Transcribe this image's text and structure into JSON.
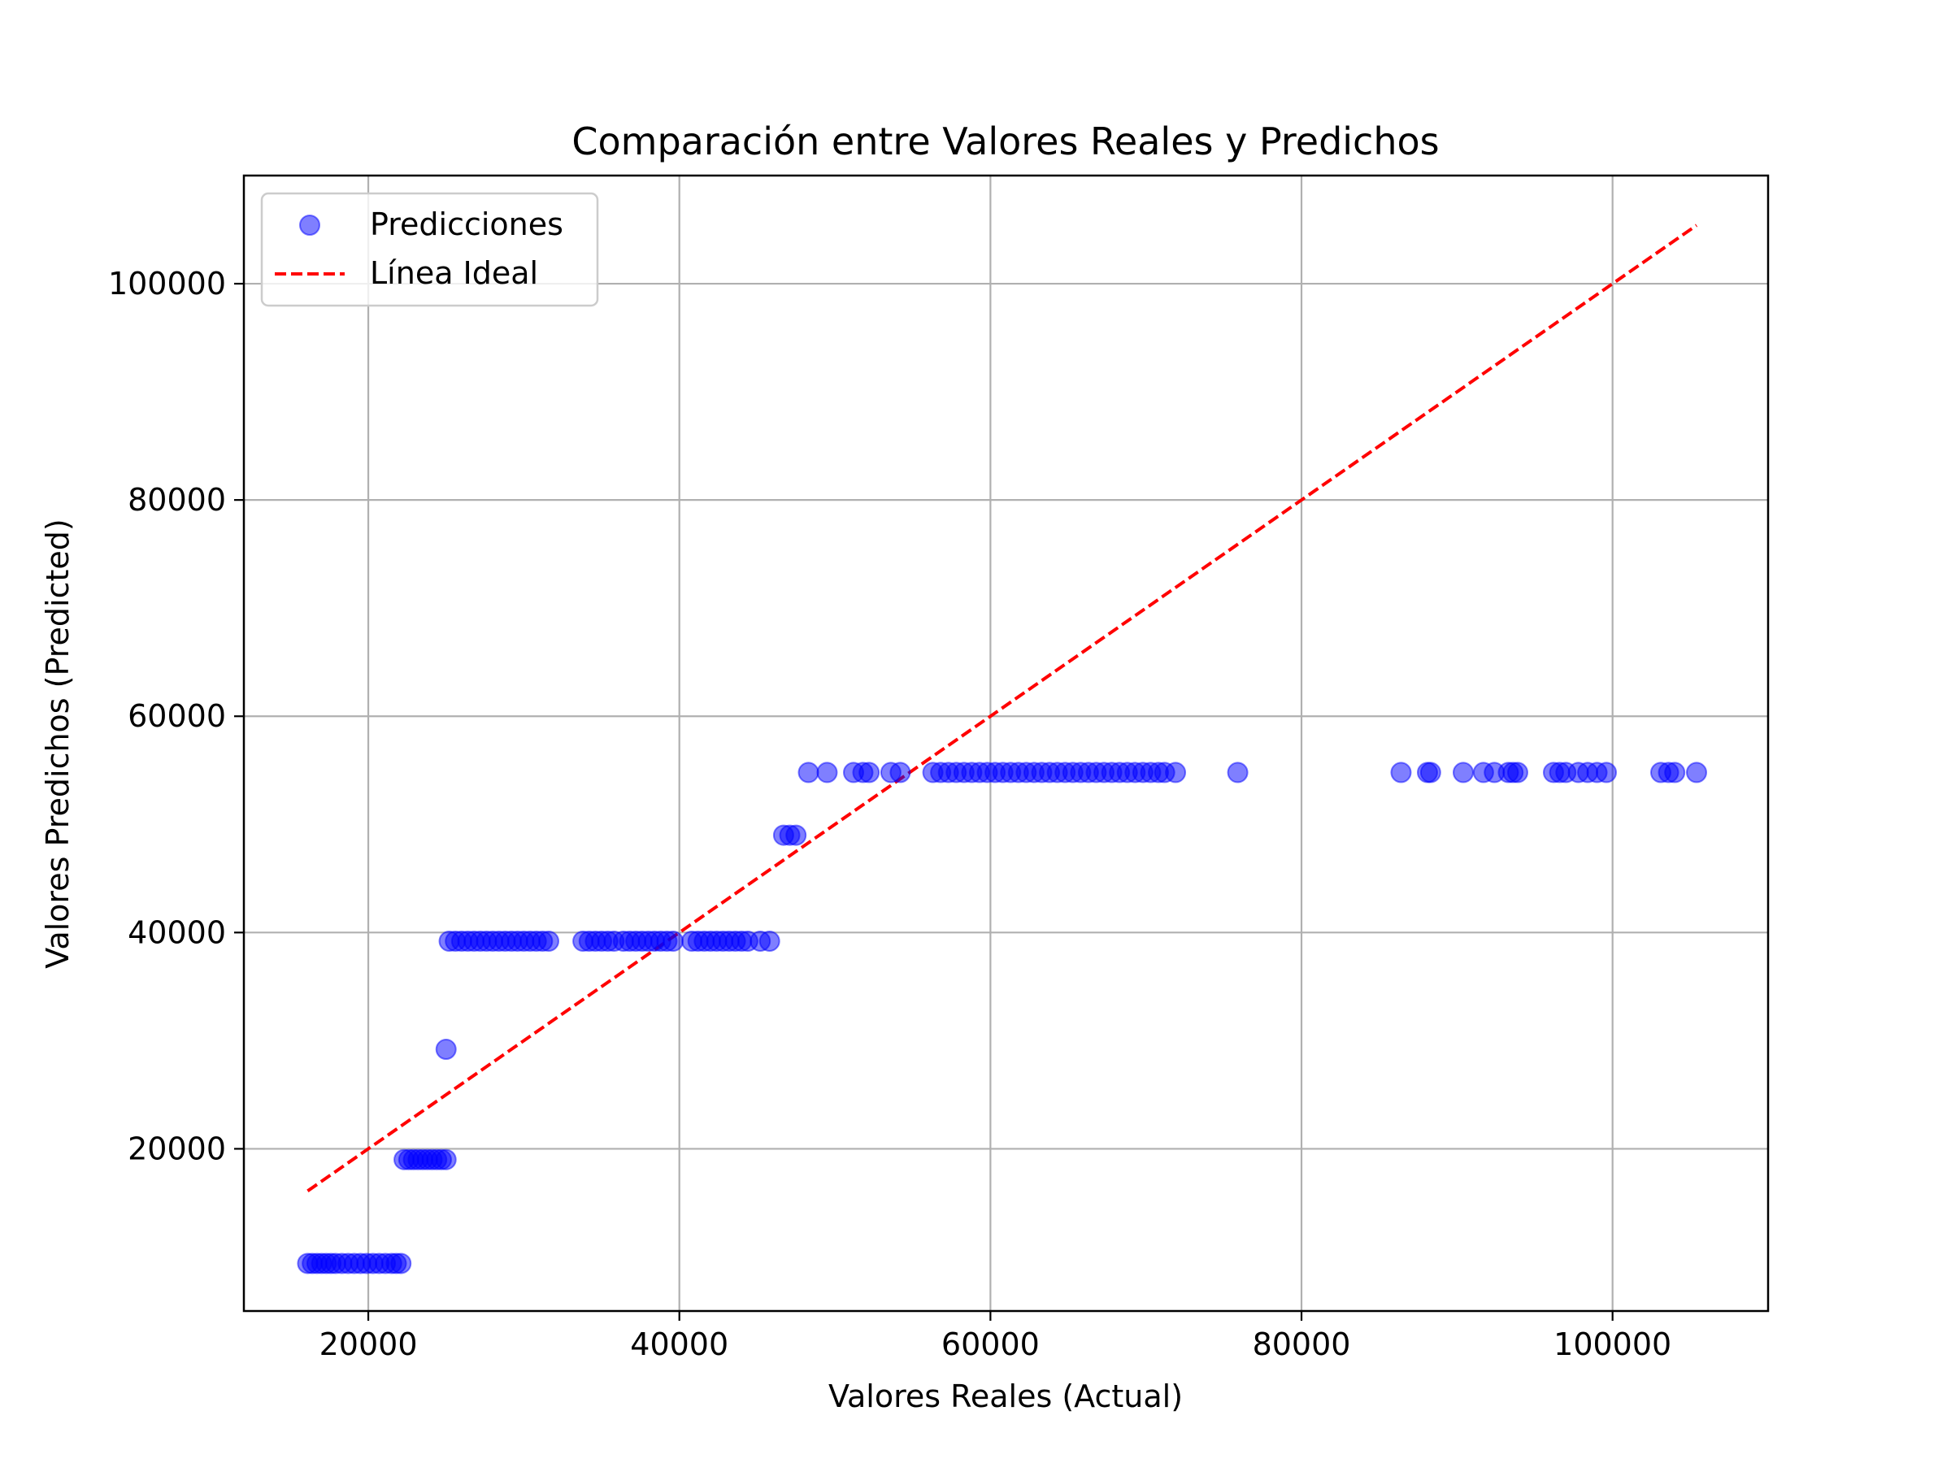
{
  "chart_data": {
    "type": "scatter",
    "title": "Comparación entre Valores Reales y Predichos",
    "xlabel": "Valores Reales (Actual)",
    "ylabel": "Valores Predichos (Predicted)",
    "xlim": [
      12000,
      110000
    ],
    "ylim": [
      5000,
      110000
    ],
    "xticks": [
      20000,
      40000,
      60000,
      80000,
      100000
    ],
    "yticks": [
      20000,
      40000,
      60000,
      80000,
      100000
    ],
    "xtick_labels": [
      "20000",
      "40000",
      "60000",
      "80000",
      "100000"
    ],
    "ytick_labels": [
      "20000",
      "40000",
      "60000",
      "80000",
      "100000"
    ],
    "grid": true,
    "legend_position": "top-left",
    "legend": [
      {
        "label": "Predicciones",
        "kind": "marker",
        "color": "#0000ff"
      },
      {
        "label": "Línea Ideal",
        "kind": "dashed-line",
        "color": "#ff0000"
      }
    ],
    "series": [
      {
        "name": "Predicciones",
        "kind": "scatter",
        "color": "#0000ff",
        "alpha": 0.5,
        "points": [
          [
            16100,
            9400
          ],
          [
            16400,
            9400
          ],
          [
            16700,
            9400
          ],
          [
            17000,
            9400
          ],
          [
            17300,
            9400
          ],
          [
            17600,
            9400
          ],
          [
            17900,
            9400
          ],
          [
            18300,
            9400
          ],
          [
            18700,
            9400
          ],
          [
            19100,
            9400
          ],
          [
            19500,
            9400
          ],
          [
            19900,
            9400
          ],
          [
            20300,
            9400
          ],
          [
            20700,
            9400
          ],
          [
            21100,
            9400
          ],
          [
            21500,
            9400
          ],
          [
            21800,
            9400
          ],
          [
            22100,
            9400
          ],
          [
            22300,
            19000
          ],
          [
            22600,
            19000
          ],
          [
            22900,
            19000
          ],
          [
            23200,
            19000
          ],
          [
            23500,
            19000
          ],
          [
            23800,
            19000
          ],
          [
            24100,
            19000
          ],
          [
            24400,
            19000
          ],
          [
            24700,
            19000
          ],
          [
            25000,
            19000
          ],
          [
            25000,
            29200
          ],
          [
            25200,
            39200
          ],
          [
            25600,
            39200
          ],
          [
            26000,
            39200
          ],
          [
            26400,
            39200
          ],
          [
            26800,
            39200
          ],
          [
            27200,
            39200
          ],
          [
            27600,
            39200
          ],
          [
            28000,
            39200
          ],
          [
            28400,
            39200
          ],
          [
            28800,
            39200
          ],
          [
            29200,
            39200
          ],
          [
            29600,
            39200
          ],
          [
            30000,
            39200
          ],
          [
            30400,
            39200
          ],
          [
            30800,
            39200
          ],
          [
            31200,
            39200
          ],
          [
            31600,
            39200
          ],
          [
            33800,
            39200
          ],
          [
            34200,
            39200
          ],
          [
            34600,
            39200
          ],
          [
            35000,
            39200
          ],
          [
            35400,
            39200
          ],
          [
            35800,
            39200
          ],
          [
            36400,
            39200
          ],
          [
            36800,
            39200
          ],
          [
            37200,
            39200
          ],
          [
            37600,
            39200
          ],
          [
            38000,
            39200
          ],
          [
            38400,
            39200
          ],
          [
            38800,
            39200
          ],
          [
            39200,
            39200
          ],
          [
            39600,
            39200
          ],
          [
            40800,
            39200
          ],
          [
            41200,
            39200
          ],
          [
            41600,
            39200
          ],
          [
            42000,
            39200
          ],
          [
            42400,
            39200
          ],
          [
            42800,
            39200
          ],
          [
            43200,
            39200
          ],
          [
            43600,
            39200
          ],
          [
            44000,
            39200
          ],
          [
            44400,
            39200
          ],
          [
            45200,
            39200
          ],
          [
            45800,
            39200
          ],
          [
            46700,
            49000
          ],
          [
            47100,
            49000
          ],
          [
            47500,
            49000
          ],
          [
            48300,
            54800
          ],
          [
            49500,
            54800
          ],
          [
            51200,
            54800
          ],
          [
            51800,
            54800
          ],
          [
            52200,
            54800
          ],
          [
            53600,
            54800
          ],
          [
            54200,
            54800
          ],
          [
            56300,
            54800
          ],
          [
            56800,
            54800
          ],
          [
            57300,
            54800
          ],
          [
            57800,
            54800
          ],
          [
            58300,
            54800
          ],
          [
            58800,
            54800
          ],
          [
            59300,
            54800
          ],
          [
            59800,
            54800
          ],
          [
            60300,
            54800
          ],
          [
            60800,
            54800
          ],
          [
            61300,
            54800
          ],
          [
            61800,
            54800
          ],
          [
            62300,
            54800
          ],
          [
            62800,
            54800
          ],
          [
            63300,
            54800
          ],
          [
            63800,
            54800
          ],
          [
            64300,
            54800
          ],
          [
            64800,
            54800
          ],
          [
            65300,
            54800
          ],
          [
            65800,
            54800
          ],
          [
            66300,
            54800
          ],
          [
            66800,
            54800
          ],
          [
            67300,
            54800
          ],
          [
            67800,
            54800
          ],
          [
            68300,
            54800
          ],
          [
            68800,
            54800
          ],
          [
            69300,
            54800
          ],
          [
            69800,
            54800
          ],
          [
            70300,
            54800
          ],
          [
            70800,
            54800
          ],
          [
            71200,
            54800
          ],
          [
            71900,
            54800
          ],
          [
            75900,
            54800
          ],
          [
            86400,
            54800
          ],
          [
            88100,
            54800
          ],
          [
            88300,
            54800
          ],
          [
            90400,
            54800
          ],
          [
            91700,
            54800
          ],
          [
            92400,
            54800
          ],
          [
            93300,
            54800
          ],
          [
            93600,
            54800
          ],
          [
            93900,
            54800
          ],
          [
            96200,
            54800
          ],
          [
            96600,
            54800
          ],
          [
            97000,
            54800
          ],
          [
            97800,
            54800
          ],
          [
            98400,
            54800
          ],
          [
            99000,
            54800
          ],
          [
            99600,
            54800
          ],
          [
            103100,
            54800
          ],
          [
            103600,
            54800
          ],
          [
            104000,
            54800
          ],
          [
            105400,
            54800
          ]
        ]
      },
      {
        "name": "Línea Ideal",
        "kind": "line",
        "style": "dashed",
        "color": "#ff0000",
        "x": [
          16100,
          105400
        ],
        "y": [
          16100,
          105400
        ]
      }
    ]
  }
}
